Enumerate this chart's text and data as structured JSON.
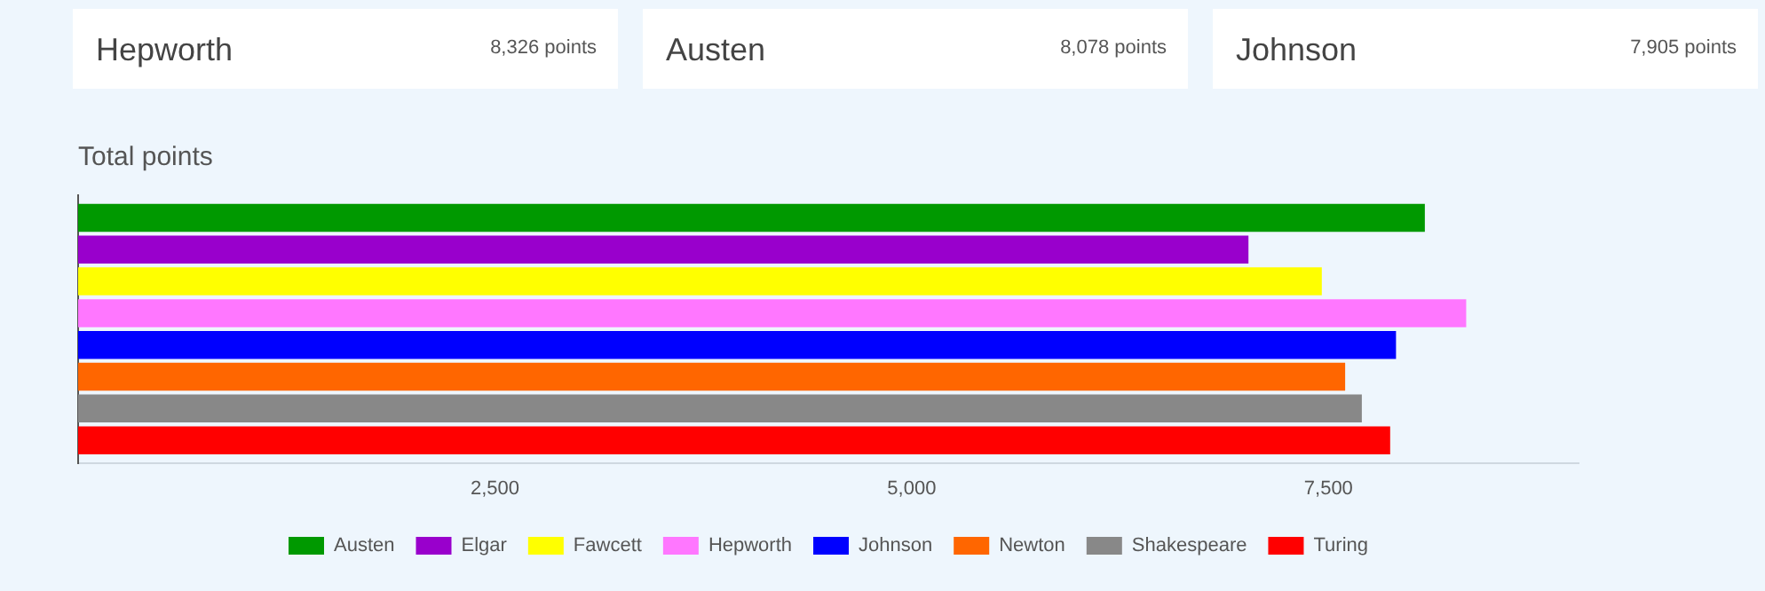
{
  "chart_data": [
    {
      "type": "other",
      "title": "Hepworth",
      "annotations": [
        "8,326 points"
      ]
    },
    {
      "type": "other",
      "title": "Austen",
      "annotations": [
        "8,078 points"
      ]
    },
    {
      "type": "other",
      "title": "Johnson",
      "annotations": [
        "7,905 points"
      ]
    },
    {
      "type": "bar",
      "title": "Total points",
      "orientation": "horizontal",
      "categories": [
        null
      ],
      "series": [
        {
          "name": "Austen",
          "color": "#009900",
          "values": [
            8078
          ]
        },
        {
          "name": "Elgar",
          "color": "#9900cc",
          "values": [
            7020
          ]
        },
        {
          "name": "Fawcett",
          "color": "#ffff00",
          "values": [
            7460
          ]
        },
        {
          "name": "Hepworth",
          "color": "#ff77ff",
          "values": [
            8326
          ]
        },
        {
          "name": "Johnson",
          "color": "#0000ff",
          "values": [
            7905
          ]
        },
        {
          "name": "Newton",
          "color": "#ff6600",
          "values": [
            7600
          ]
        },
        {
          "name": "Shakespeare",
          "color": "#888888",
          "values": [
            7700
          ]
        },
        {
          "name": "Turing",
          "color": "#ff0000",
          "values": [
            7870
          ]
        }
      ],
      "xlim": [
        0,
        9000
      ],
      "xticks": [
        {
          "value": 2500,
          "label": "2,500"
        },
        {
          "value": 5000,
          "label": "5,000"
        },
        {
          "value": 7500,
          "label": "7,500"
        }
      ],
      "legend": "bottom"
    }
  ]
}
